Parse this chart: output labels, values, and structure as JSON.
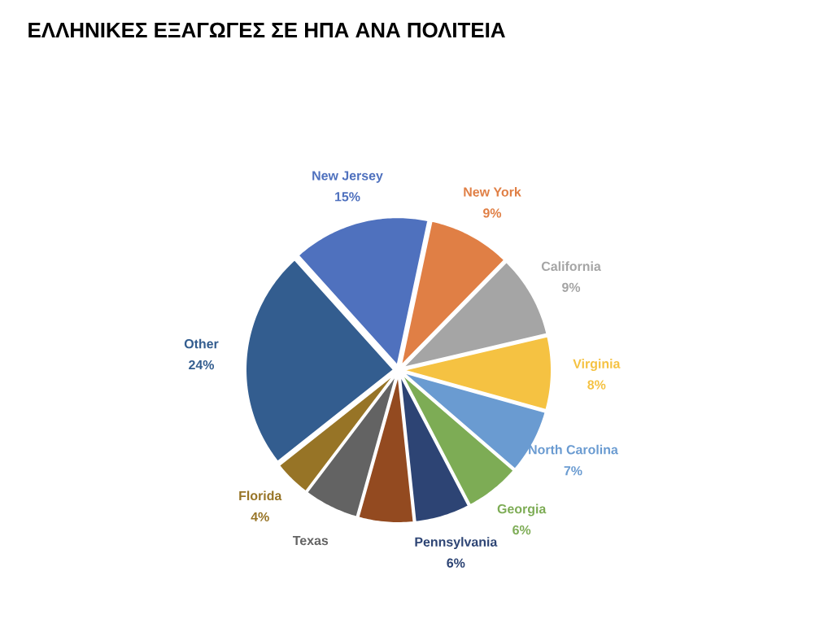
{
  "chart_data": {
    "type": "pie",
    "title": "ΕΛΛΗΝΙΚΕΣ ΕΞΑΓΩΓΕΣ ΣΕ ΗΠΑ ΑΝΑ ΠΟΛΙΤΕΙΑ",
    "categories": [
      "New Jersey",
      "New York",
      "California",
      "Virginia",
      "North Carolina",
      "Georgia",
      "Pennsylvania",
      null,
      "Texas",
      "Florida",
      "Other"
    ],
    "values": [
      15,
      9,
      9,
      8,
      7,
      6,
      6,
      6,
      6,
      4,
      24
    ],
    "value_labels": [
      "15%",
      "9%",
      "9%",
      "8%",
      "7%",
      "6%",
      "6%",
      null,
      null,
      "4%",
      "24%"
    ],
    "colors": [
      "#4f71be",
      "#e07f45",
      "#a5a5a5",
      "#f5c242",
      "#6a9bd1",
      "#7dac55",
      "#2d4474",
      "#934a20",
      "#636363",
      "#977426",
      "#335d8f"
    ]
  }
}
